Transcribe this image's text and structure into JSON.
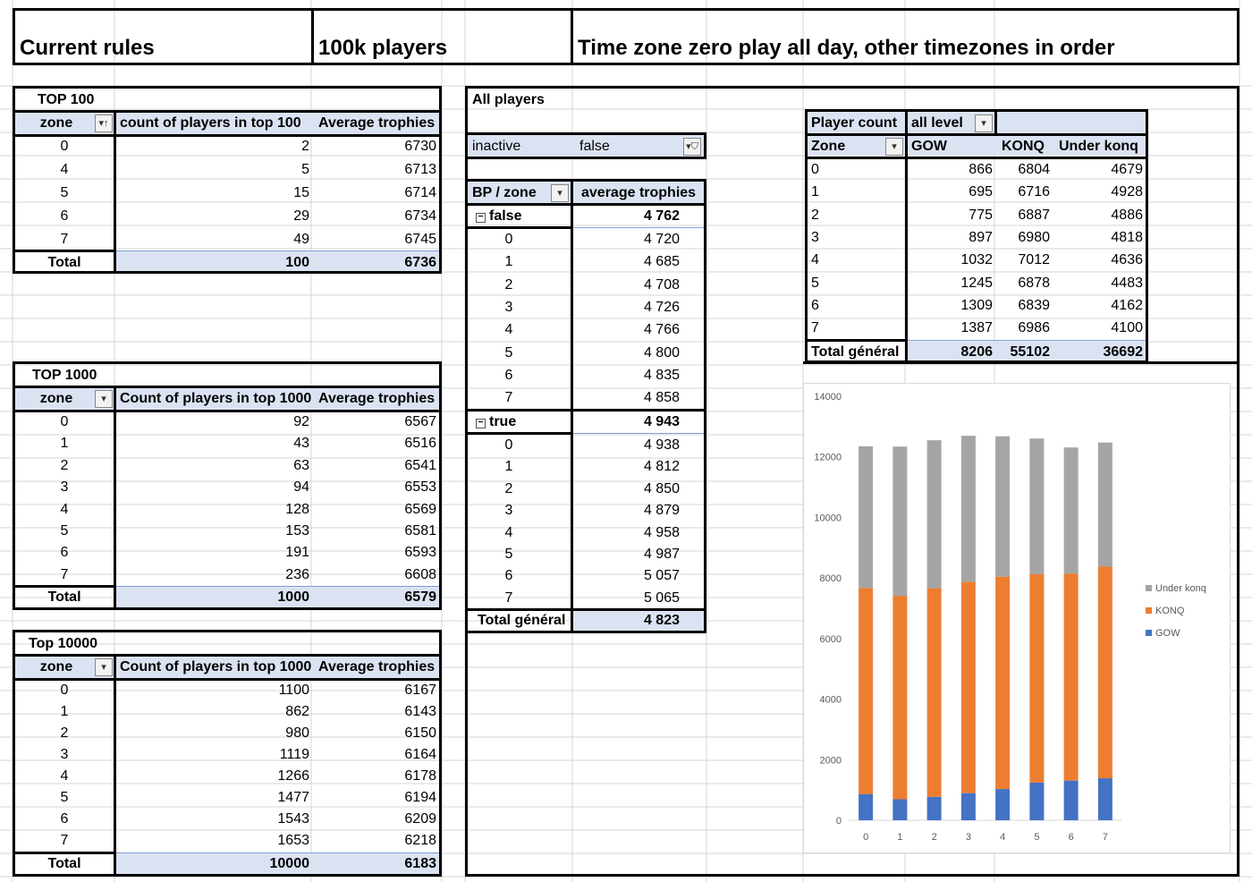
{
  "titles": {
    "rules": "Current rules",
    "players": "100k players",
    "timezone": "Time zone zero play all day, other timezones in order"
  },
  "top100": {
    "title": "TOP 100",
    "headers": [
      "zone",
      "count of players in top 100",
      "Average trophies"
    ],
    "rows": [
      [
        "0",
        "2",
        "6730"
      ],
      [
        "4",
        "5",
        "6713"
      ],
      [
        "5",
        "15",
        "6714"
      ],
      [
        "6",
        "29",
        "6734"
      ],
      [
        "7",
        "49",
        "6745"
      ]
    ],
    "total": [
      "Total",
      "100",
      "6736"
    ]
  },
  "top1000": {
    "title": "TOP 1000",
    "headers": [
      "zone",
      "Count of players in top 1000",
      "Average trophies"
    ],
    "rows": [
      [
        "0",
        "92",
        "6567"
      ],
      [
        "1",
        "43",
        "6516"
      ],
      [
        "2",
        "63",
        "6541"
      ],
      [
        "3",
        "94",
        "6553"
      ],
      [
        "4",
        "128",
        "6569"
      ],
      [
        "5",
        "153",
        "6581"
      ],
      [
        "6",
        "191",
        "6593"
      ],
      [
        "7",
        "236",
        "6608"
      ]
    ],
    "total": [
      "Total",
      "1000",
      "6579"
    ]
  },
  "top10000": {
    "title": "Top 10000",
    "headers": [
      "zone",
      "Count of players in top 1000",
      "Average trophies"
    ],
    "rows": [
      [
        "0",
        "1100",
        "6167"
      ],
      [
        "1",
        "862",
        "6143"
      ],
      [
        "2",
        "980",
        "6150"
      ],
      [
        "3",
        "1119",
        "6164"
      ],
      [
        "4",
        "1266",
        "6178"
      ],
      [
        "5",
        "1477",
        "6194"
      ],
      [
        "6",
        "1543",
        "6209"
      ],
      [
        "7",
        "1653",
        "6218"
      ]
    ],
    "total": [
      "Total",
      "10000",
      "6183"
    ]
  },
  "allplayers": {
    "title": "All players",
    "filter_label": "inactive",
    "filter_value": "false",
    "headers": [
      "BP / zone",
      "average trophies"
    ],
    "group_false": {
      "label": "false",
      "value": "4 762",
      "rows": [
        [
          "0",
          "4 720"
        ],
        [
          "1",
          "4 685"
        ],
        [
          "2",
          "4 708"
        ],
        [
          "3",
          "4 726"
        ],
        [
          "4",
          "4 766"
        ],
        [
          "5",
          "4 800"
        ],
        [
          "6",
          "4 835"
        ],
        [
          "7",
          "4 858"
        ]
      ]
    },
    "group_true": {
      "label": "true",
      "value": "4 943",
      "rows": [
        [
          "0",
          "4 938"
        ],
        [
          "1",
          "4 812"
        ],
        [
          "2",
          "4 850"
        ],
        [
          "3",
          "4 879"
        ],
        [
          "4",
          "4 958"
        ],
        [
          "5",
          "4 987"
        ],
        [
          "6",
          "5 057"
        ],
        [
          "7",
          "5 065"
        ]
      ]
    },
    "total": [
      "Total général",
      "4 823"
    ]
  },
  "playercount": {
    "filter_label": "Player count",
    "filter_value": "all level",
    "headers": [
      "Zone",
      "GOW",
      "KONQ",
      "Under konq"
    ],
    "rows": [
      [
        "0",
        "866",
        "6804",
        "4679"
      ],
      [
        "1",
        "695",
        "6716",
        "4928"
      ],
      [
        "2",
        "775",
        "6887",
        "4886"
      ],
      [
        "3",
        "897",
        "6980",
        "4818"
      ],
      [
        "4",
        "1032",
        "7012",
        "4636"
      ],
      [
        "5",
        "1245",
        "6878",
        "4483"
      ],
      [
        "6",
        "1309",
        "6839",
        "4162"
      ],
      [
        "7",
        "1387",
        "6986",
        "4100"
      ]
    ],
    "total": [
      "Total général",
      "8206",
      "55102",
      "36692"
    ]
  },
  "chart_data": {
    "type": "bar",
    "stacked": true,
    "categories": [
      "0",
      "1",
      "2",
      "3",
      "4",
      "5",
      "6",
      "7"
    ],
    "series": [
      {
        "name": "GOW",
        "color": "#4472c4",
        "values": [
          866,
          695,
          775,
          897,
          1032,
          1245,
          1309,
          1387
        ]
      },
      {
        "name": "KONQ",
        "color": "#ed7d31",
        "values": [
          6804,
          6716,
          6887,
          6980,
          7012,
          6878,
          6839,
          6986
        ]
      },
      {
        "name": "Under konq",
        "color": "#a5a5a5",
        "values": [
          4679,
          4928,
          4886,
          4818,
          4636,
          4483,
          4162,
          4100
        ]
      }
    ],
    "ylim": [
      0,
      14000
    ],
    "yticks": [
      "0",
      "2000",
      "4000",
      "6000",
      "8000",
      "10000",
      "12000",
      "14000"
    ],
    "legend": "right",
    "grid": false
  }
}
